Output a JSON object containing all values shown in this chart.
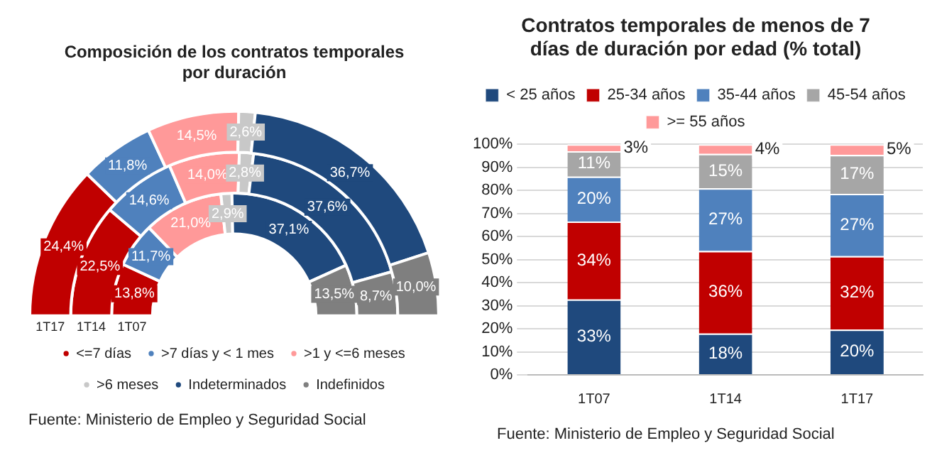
{
  "chart_data": [
    {
      "type": "donut",
      "title": "Composición de los contratos temporales por duración",
      "categories": [
        "<=7 días",
        ">7 días y < 1 mes",
        ">1 y <=6 meses",
        ">6 meses",
        "Indeterminados",
        "Indefinidos"
      ],
      "colors": [
        "#c00000",
        "#4f81bd",
        "#ff9999",
        "#c8c8c8",
        "#1f497d",
        "#7f7f7f"
      ],
      "series": [
        {
          "name": "1T17",
          "values": [
            24.4,
            11.8,
            14.5,
            2.6,
            36.7,
            10.0
          ],
          "value_labels": [
            "24,4%",
            "11,8%",
            "14,5%",
            "2,6%",
            "36,7%",
            "10,0%"
          ]
        },
        {
          "name": "1T14",
          "values": [
            22.5,
            14.6,
            14.0,
            2.8,
            37.6,
            8.7
          ],
          "value_labels": [
            "22,5%",
            "14,6%",
            "14,0%",
            "2,8%",
            "37,6%",
            "8,7%"
          ]
        },
        {
          "name": "1T07",
          "values": [
            13.8,
            11.7,
            21.0,
            2.9,
            37.1,
            13.5
          ],
          "value_labels": [
            "13,8%",
            "11,7%",
            "21,0%",
            "2,9%",
            "37,1%",
            "13,5%"
          ]
        }
      ],
      "legend": "bottom",
      "annotations": [
        "Fuente: Ministerio de Empleo y Seguridad Social"
      ]
    },
    {
      "type": "bar",
      "stacked": true,
      "title": "Contratos temporales de menos de 7 días de duración por edad (% total)",
      "categories": [
        "1T07",
        "1T14",
        "1T17"
      ],
      "series": [
        {
          "name": "< 25 años",
          "color": "#1f497d",
          "values": [
            32.7,
            17.9,
            19.6
          ],
          "value_labels": [
            "33%",
            "18%",
            "20%"
          ]
        },
        {
          "name": "25-34 años",
          "color": "#c00000",
          "values": [
            33.8,
            35.8,
            31.9
          ],
          "value_labels": [
            "34%",
            "36%",
            "32%"
          ]
        },
        {
          "name": "35-44 años",
          "color": "#4f81bd",
          "values": [
            19.5,
            27.2,
            27.0
          ],
          "value_labels": [
            "20%",
            "27%",
            "27%"
          ]
        },
        {
          "name": "45-54 años",
          "color": "#a6a6a6",
          "values": [
            11.0,
            14.9,
            16.9
          ],
          "value_labels": [
            "11%",
            "15%",
            "17%"
          ]
        },
        {
          "name": ">= 55 años",
          "color": "#ff9999",
          "values": [
            3.0,
            4.2,
            4.6
          ],
          "value_labels": [
            "3%",
            "4%",
            "5%"
          ]
        }
      ],
      "ylim": [
        0,
        100
      ],
      "yticks": [
        {
          "value": 0,
          "label": "0%"
        },
        {
          "value": 10,
          "label": "10%"
        },
        {
          "value": 20,
          "label": "20%"
        },
        {
          "value": 30,
          "label": "30%"
        },
        {
          "value": 40,
          "label": "40%"
        },
        {
          "value": 50,
          "label": "50%"
        },
        {
          "value": 60,
          "label": "60%"
        },
        {
          "value": 70,
          "label": "70%"
        },
        {
          "value": 80,
          "label": "80%"
        },
        {
          "value": 90,
          "label": "90%"
        },
        {
          "value": 100,
          "label": "100%"
        }
      ],
      "grid": "y",
      "legend": "top",
      "annotations": [
        "Fuente: Ministerio de Empleo y Seguridad Social"
      ]
    }
  ]
}
